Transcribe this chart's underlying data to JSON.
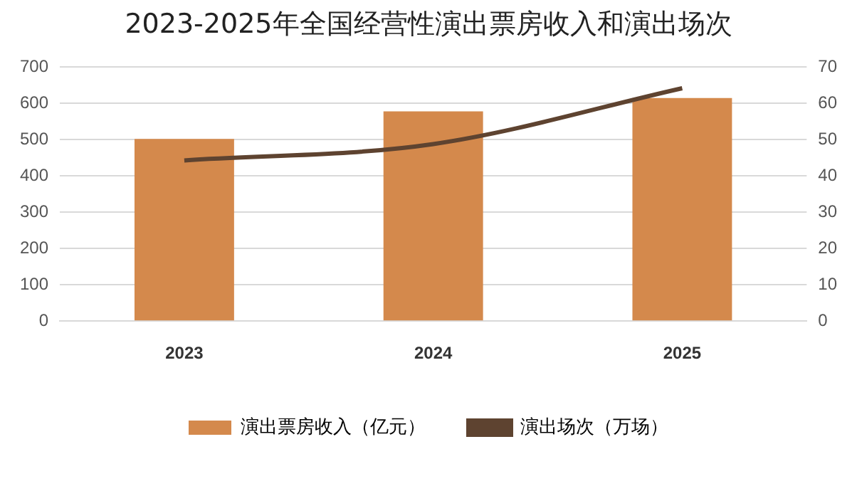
{
  "chart_data": {
    "type": "bar",
    "title": "2023-2025年全国经营性演出票房收入和演出场次",
    "categories": [
      "2023",
      "2024",
      "2025"
    ],
    "series": [
      {
        "name": "演出票房收入（亿元）",
        "color": "#d4894c",
        "values": [
          502,
          578,
          615
        ]
      },
      {
        "name": "演出场次（万场）",
        "type": "line",
        "axis": "y2",
        "color": "#5e4330",
        "values": [
          44.3,
          48.8,
          64.2
        ]
      }
    ],
    "ylim": [
      0,
      700
    ],
    "yticks": [
      0,
      100,
      200,
      300,
      400,
      500,
      600,
      700
    ],
    "y2lim": [
      0,
      70
    ],
    "y2ticks": [
      0,
      10,
      20,
      30,
      40,
      50,
      60,
      70
    ],
    "grid": "y",
    "legend": "bottom",
    "marker": "none"
  }
}
